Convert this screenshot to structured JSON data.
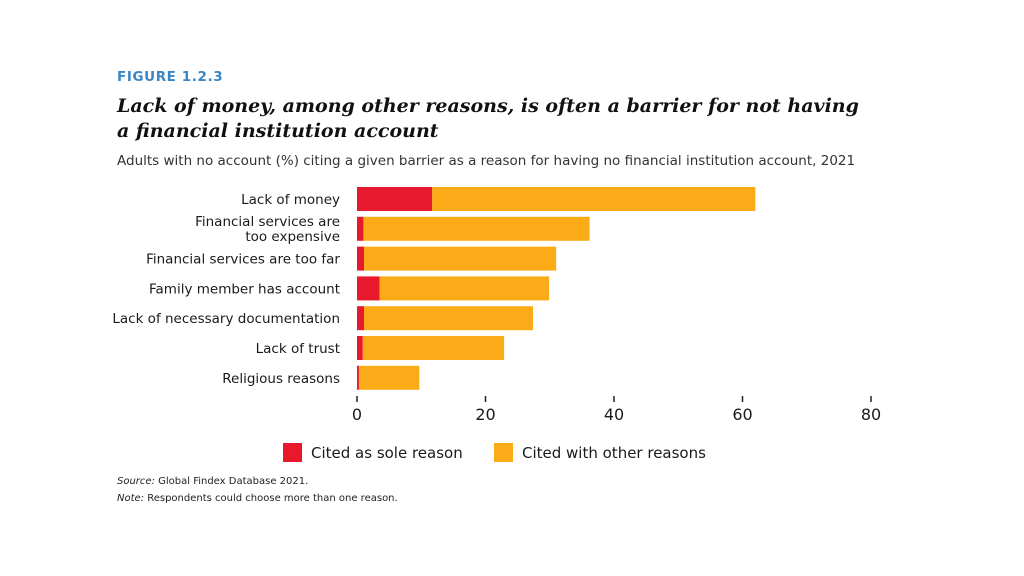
{
  "figure_label": "FIGURE 1.2.3",
  "title": "Lack of money, among other reasons, is often a barrier for not having a financial institution account",
  "subtitle": "Adults with no account (%) citing a given barrier as a reason for having no financial institution account, 2021",
  "source": {
    "label": "Source:",
    "text": " Global Findex Database 2021."
  },
  "note": {
    "label": "Note:",
    "text": " Respondents could choose more than one reason."
  },
  "colors": {
    "sole": "#e8192c",
    "other": "#fbab18"
  },
  "chart_data": {
    "type": "bar",
    "orientation": "horizontal",
    "stacked": true,
    "categories": [
      [
        "Lack of money"
      ],
      [
        "Financial services are",
        "too expensive"
      ],
      [
        "Financial services are too far"
      ],
      [
        "Family member has account"
      ],
      [
        "Lack of necessary documentation"
      ],
      [
        "Lack of trust"
      ],
      [
        "Religious reasons"
      ]
    ],
    "series": [
      {
        "name": "Cited as sole reason",
        "values": [
          11.7,
          1.0,
          1.1,
          3.5,
          1.1,
          0.9,
          0.3
        ]
      },
      {
        "name": "Cited with other reasons",
        "values": [
          50.3,
          35.2,
          29.9,
          26.4,
          26.3,
          22.0,
          9.4
        ]
      }
    ],
    "xlim": [
      0,
      80
    ],
    "xticks": [
      0,
      20,
      40,
      60,
      80
    ],
    "grid": false,
    "legend_position": "bottom"
  }
}
